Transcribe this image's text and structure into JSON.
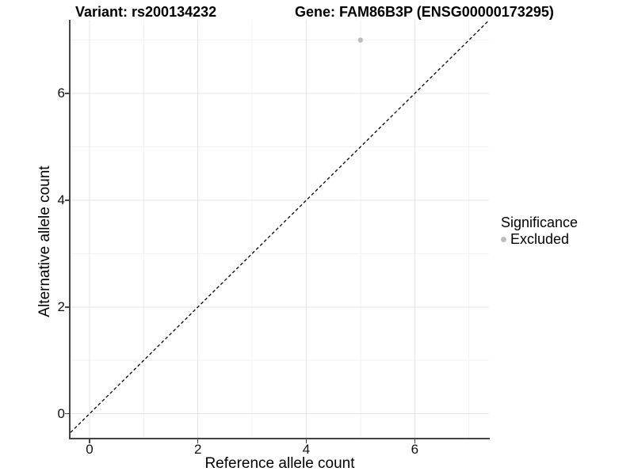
{
  "titles": {
    "variant": "Variant: rs200134232",
    "gene": "Gene: FAM86B3P (ENSG00000173295)"
  },
  "axes": {
    "x": {
      "label": "Reference allele count",
      "ticks": [
        "0",
        "2",
        "4",
        "6"
      ]
    },
    "y": {
      "label": "Alternative allele count",
      "ticks": [
        "0",
        "2",
        "4",
        "6"
      ]
    }
  },
  "legend": {
    "title": "Significance",
    "items": [
      {
        "label": "Excluded",
        "color": "#bdbdbd"
      }
    ]
  },
  "colors": {
    "background": "#ffffff",
    "axis_line": "#454545",
    "grid_major": "#e4e4e4",
    "grid_minor": "#f2f2f2",
    "reference_line": "#000000",
    "point_excluded": "#bdbdbd",
    "text": "#000000"
  },
  "chart_data": {
    "type": "scatter",
    "title": "Variant: rs200134232 | Gene: FAM86B3P (ENSG00000173295)",
    "xlabel": "Reference allele count",
    "ylabel": "Alternative allele count",
    "xlim": [
      -0.35,
      7.37
    ],
    "ylim": [
      -0.45,
      7.38
    ],
    "x_ticks": [
      0,
      2,
      4,
      6
    ],
    "y_ticks": [
      0,
      2,
      4,
      6
    ],
    "x_minor_gridlines": [
      1,
      3,
      5,
      7
    ],
    "y_minor_gridlines": [
      1,
      3,
      5,
      7
    ],
    "grid": "major+minor",
    "legend_position": "right",
    "series": [
      {
        "name": "Excluded",
        "color": "#bdbdbd",
        "points": [
          {
            "x": 5,
            "y": 7
          }
        ]
      }
    ],
    "reference_line": {
      "type": "identity",
      "style": "dashed",
      "color": "#000000"
    }
  }
}
